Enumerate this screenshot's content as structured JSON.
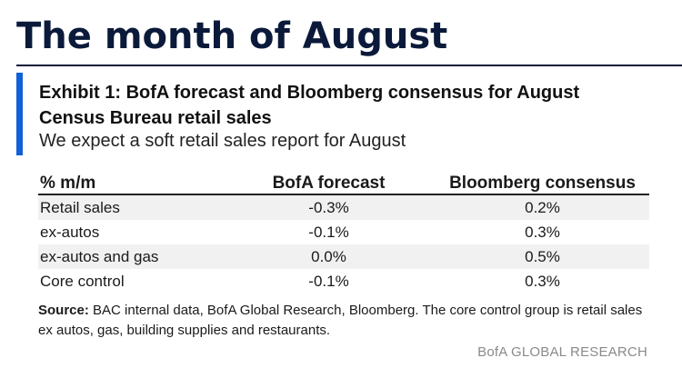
{
  "page": {
    "title": "The month of August"
  },
  "exhibit": {
    "title": "Exhibit 1: BofA forecast and Bloomberg consensus for August Census Bureau retail sales",
    "subtitle": "We expect a soft retail sales report for August",
    "accent_color": "#1060d8"
  },
  "table": {
    "headers": [
      "% m/m",
      "BofA forecast",
      "Bloomberg consensus"
    ],
    "rows": [
      {
        "label": "Retail sales",
        "bofa": "-0.3%",
        "bloomberg": "0.2%"
      },
      {
        "label": "ex-autos",
        "bofa": "-0.1%",
        "bloomberg": "0.3%"
      },
      {
        "label": "ex-autos and gas",
        "bofa": "0.0%",
        "bloomberg": "0.5%"
      },
      {
        "label": "Core control",
        "bofa": "-0.1%",
        "bloomberg": "0.3%"
      }
    ]
  },
  "source": {
    "label": "Source:",
    "text": " BAC internal data, BofA Global Research, Bloomberg. The core control group is retail sales ex autos, gas, building supplies and restaurants."
  },
  "footer": {
    "brand": "BofA GLOBAL RESEARCH"
  }
}
